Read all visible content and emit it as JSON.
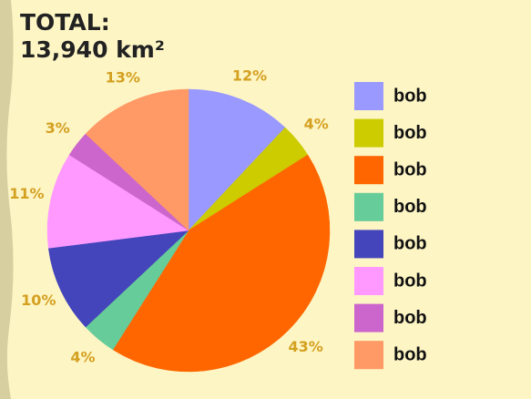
{
  "chart_data": {
    "type": "pie",
    "title": "TOTAL:",
    "subtitle": "13,940 km²",
    "categories": [
      "bob",
      "bob",
      "bob",
      "bob",
      "bob",
      "bob",
      "bob",
      "bob"
    ],
    "values": [
      12,
      4,
      43,
      4,
      10,
      11,
      3,
      13
    ],
    "value_labels": [
      "12%",
      "4%",
      "43%",
      "4%",
      "10%",
      "11%",
      "3%",
      "13%"
    ],
    "colors": [
      "#9999ff",
      "#cccc00",
      "#ff6600",
      "#66cc99",
      "#4444bb",
      "#ff99ff",
      "#cc66cc",
      "#ff9966"
    ]
  }
}
